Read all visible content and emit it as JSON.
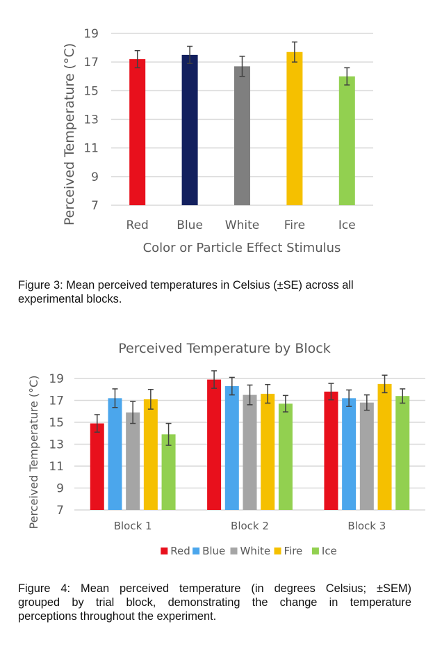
{
  "chart_data": [
    {
      "type": "bar",
      "title": "",
      "xlabel": "Color or Particle Effect Stimulus",
      "ylabel": "Perceived Temperature (°C)",
      "ylim": [
        7,
        19
      ],
      "yticks": [
        7,
        9,
        11,
        13,
        15,
        17,
        19
      ],
      "grid": true,
      "categories": [
        "Red",
        "Blue",
        "White",
        "Fire",
        "Ice"
      ],
      "values": [
        17.2,
        17.5,
        16.7,
        17.7,
        16.0
      ],
      "errors": [
        0.6,
        0.6,
        0.7,
        0.7,
        0.6
      ],
      "colors": [
        "#E8101C",
        "#13205E",
        "#7F7F7F",
        "#F5C000",
        "#92D050"
      ]
    },
    {
      "type": "bar",
      "title": "Perceived Temperature by Block",
      "xlabel": "",
      "ylabel": "Perceived Temperature (°C)",
      "ylim": [
        7,
        19
      ],
      "yticks": [
        7,
        9,
        11,
        13,
        15,
        17,
        19
      ],
      "grid": true,
      "legend_position": "bottom",
      "categories": [
        "Block 1",
        "Block 2",
        "Block 3"
      ],
      "series": [
        {
          "name": "Red",
          "color": "#E8101C",
          "values": [
            14.9,
            18.9,
            17.8
          ],
          "errors": [
            0.8,
            0.8,
            0.75
          ]
        },
        {
          "name": "Blue",
          "color": "#4BA6EC",
          "values": [
            17.2,
            18.3,
            17.2
          ],
          "errors": [
            0.85,
            0.8,
            0.75
          ]
        },
        {
          "name": "White",
          "color": "#A5A5A5",
          "values": [
            15.9,
            17.5,
            16.8
          ],
          "errors": [
            1.0,
            0.9,
            0.7
          ]
        },
        {
          "name": "Fire",
          "color": "#F5C000",
          "values": [
            17.1,
            17.6,
            18.5
          ],
          "errors": [
            0.9,
            0.85,
            0.8
          ]
        },
        {
          "name": "Ice",
          "color": "#92D050",
          "values": [
            13.9,
            16.7,
            17.4
          ],
          "errors": [
            1.0,
            0.75,
            0.65
          ]
        }
      ]
    }
  ],
  "captions": {
    "figure3": "Figure 3: Mean perceived temperatures in Celsius (±SE) across all experimental blocks.",
    "figure4_lines": [
      "Figure 4: Mean perceived temperature (in degrees Celsius; ±SEM)",
      "grouped by trial block, demonstrating the change in temperature",
      "perceptions throughout the experiment."
    ]
  }
}
